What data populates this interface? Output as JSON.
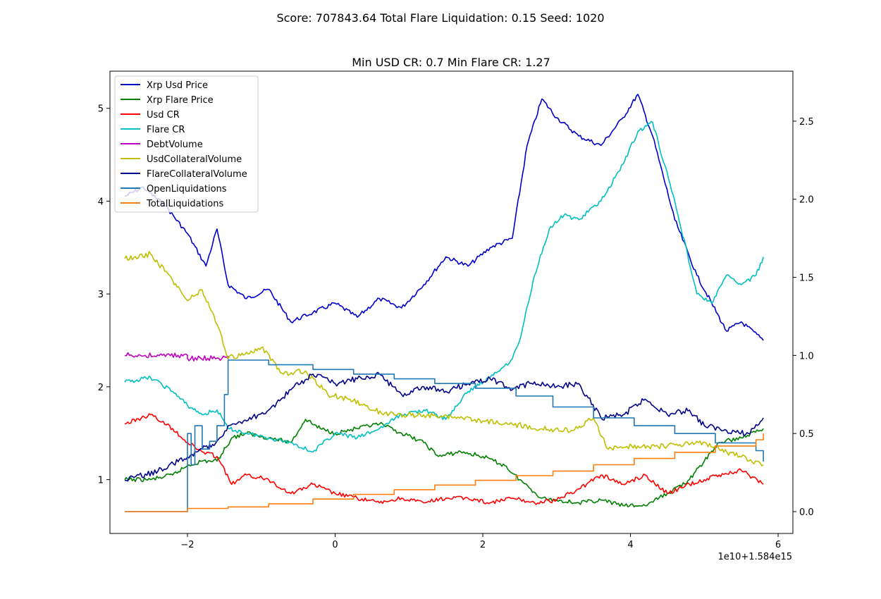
{
  "figure": {
    "suptitle": "Score: 707843.64 Total Flare Liquidation: 0.15 Seed: 1020",
    "title": "Min USD CR: 0.7 Min Flare CR: 1.27",
    "x_offset_label": "1e10+1.584e15"
  },
  "chart_data": {
    "type": "line",
    "title": "Min USD CR: 0.7 Min Flare CR: 1.27",
    "xlabel": "",
    "ylabel": "",
    "xlim": [
      -3.05,
      6.2
    ],
    "ylim": [
      0.42,
      5.4
    ],
    "y2lim": [
      -0.14,
      2.82
    ],
    "x_ticks": [
      -2,
      0,
      2,
      4,
      6
    ],
    "y_ticks": [
      1,
      2,
      3,
      4,
      5
    ],
    "y2_ticks": [
      0.0,
      0.5,
      1.0,
      1.5,
      2.0,
      2.5
    ],
    "grid": false,
    "legend_position": "upper-left",
    "series": [
      {
        "name": "Xrp Usd Price",
        "color": "#0000cc",
        "axis": "left",
        "x": [
          -2.85,
          -2.6,
          -2.3,
          -2.0,
          -1.75,
          -1.6,
          -1.45,
          -1.2,
          -0.9,
          -0.6,
          -0.3,
          0.0,
          0.3,
          0.6,
          0.9,
          1.2,
          1.5,
          1.8,
          2.1,
          2.4,
          2.6,
          2.8,
          3.0,
          3.3,
          3.6,
          3.9,
          4.1,
          4.3,
          4.6,
          4.9,
          5.1,
          5.3,
          5.5,
          5.8
        ],
        "values": [
          4.05,
          4.15,
          3.95,
          3.65,
          3.3,
          3.7,
          3.1,
          2.95,
          3.05,
          2.7,
          2.8,
          2.9,
          2.75,
          2.95,
          2.85,
          3.1,
          3.4,
          3.3,
          3.5,
          3.6,
          4.6,
          5.1,
          4.9,
          4.7,
          4.6,
          4.9,
          5.15,
          4.7,
          3.8,
          3.2,
          2.9,
          2.6,
          2.7,
          2.5
        ]
      },
      {
        "name": "Xrp Flare Price",
        "color": "#008000",
        "axis": "left",
        "x": [
          -2.85,
          -2.5,
          -2.2,
          -2.0,
          -1.8,
          -1.6,
          -1.4,
          -1.2,
          -0.9,
          -0.6,
          -0.4,
          -0.2,
          0.0,
          0.3,
          0.6,
          0.9,
          1.2,
          1.4,
          1.7,
          2.0,
          2.3,
          2.5,
          2.8,
          3.0,
          3.3,
          3.6,
          3.9,
          4.2,
          4.5,
          4.8,
          5.0,
          5.2,
          5.5,
          5.8
        ],
        "values": [
          1.0,
          1.0,
          1.05,
          1.15,
          1.2,
          1.2,
          1.45,
          1.5,
          1.45,
          1.4,
          1.65,
          1.55,
          1.5,
          1.55,
          1.6,
          1.5,
          1.4,
          1.25,
          1.3,
          1.25,
          1.15,
          1.0,
          0.8,
          0.78,
          0.75,
          0.78,
          0.72,
          0.72,
          0.85,
          1.0,
          1.2,
          1.4,
          1.45,
          1.55
        ]
      },
      {
        "name": "Usd CR",
        "color": "#ff0000",
        "axis": "left",
        "x": [
          -2.85,
          -2.5,
          -2.2,
          -2.0,
          -1.8,
          -1.6,
          -1.4,
          -1.2,
          -0.9,
          -0.6,
          -0.3,
          0.0,
          0.3,
          0.6,
          0.9,
          1.2,
          1.5,
          1.8,
          2.1,
          2.4,
          2.7,
          3.0,
          3.3,
          3.6,
          3.9,
          4.2,
          4.5,
          4.8,
          5.0,
          5.2,
          5.5,
          5.8
        ],
        "values": [
          1.6,
          1.7,
          1.55,
          1.4,
          1.3,
          1.25,
          0.95,
          1.05,
          1.0,
          0.85,
          0.95,
          0.85,
          0.8,
          0.75,
          0.8,
          0.75,
          0.8,
          0.8,
          0.75,
          0.8,
          0.75,
          0.78,
          0.9,
          1.05,
          0.95,
          1.05,
          0.85,
          0.95,
          1.0,
          1.05,
          1.1,
          0.95
        ]
      },
      {
        "name": "Flare CR",
        "color": "#00bfbf",
        "axis": "left",
        "x": [
          -2.85,
          -2.5,
          -2.2,
          -2.0,
          -1.8,
          -1.6,
          -1.45,
          -1.2,
          -0.9,
          -0.6,
          -0.3,
          0.0,
          0.3,
          0.6,
          0.9,
          1.2,
          1.5,
          1.8,
          2.1,
          2.4,
          2.5,
          2.7,
          2.9,
          3.1,
          3.3,
          3.6,
          3.9,
          4.1,
          4.3,
          4.6,
          4.9,
          5.1,
          5.3,
          5.5,
          5.7,
          5.8
        ],
        "values": [
          2.05,
          2.1,
          1.95,
          1.8,
          1.7,
          1.75,
          1.55,
          1.5,
          1.45,
          1.4,
          1.3,
          1.5,
          1.45,
          1.55,
          1.7,
          1.75,
          1.65,
          1.95,
          2.1,
          2.3,
          2.5,
          3.2,
          3.7,
          3.85,
          3.8,
          4.0,
          4.4,
          4.75,
          4.85,
          4.0,
          3.0,
          2.9,
          3.2,
          3.1,
          3.2,
          3.4
        ]
      },
      {
        "name": "DebtVolume",
        "color": "#bf00bf",
        "axis": "right",
        "x": [
          -2.85,
          -2.0,
          -2.0,
          -1.45,
          -1.45
        ],
        "values": [
          1.0,
          1.0,
          0.98,
          0.98,
          0.975
        ]
      },
      {
        "name": "UsdCollateralVolume",
        "color": "#bfbf00",
        "axis": "right",
        "x": [
          -2.85,
          -2.5,
          -2.2,
          -2.0,
          -1.8,
          -1.6,
          -1.45,
          -1.2,
          -1.0,
          -0.7,
          -0.4,
          -0.1,
          0.2,
          0.5,
          0.8,
          1.2,
          1.6,
          2.0,
          2.4,
          2.8,
          3.2,
          3.5,
          3.7,
          4.1,
          4.5,
          4.9,
          5.2,
          5.5,
          5.8
        ],
        "values": [
          1.62,
          1.65,
          1.48,
          1.35,
          1.42,
          1.2,
          0.98,
          1.02,
          1.05,
          0.88,
          0.9,
          0.75,
          0.72,
          0.65,
          0.62,
          0.62,
          0.6,
          0.58,
          0.56,
          0.53,
          0.52,
          0.6,
          0.4,
          0.42,
          0.42,
          0.45,
          0.4,
          0.35,
          0.3
        ]
      },
      {
        "name": "FlareCollateralVolume",
        "color": "#00008b",
        "axis": "right",
        "x": [
          -2.85,
          -2.4,
          -2.0,
          -1.8,
          -1.6,
          -1.45,
          -1.2,
          -0.9,
          -0.6,
          -0.3,
          0.0,
          0.3,
          0.6,
          0.9,
          1.2,
          1.5,
          1.8,
          2.1,
          2.4,
          2.7,
          3.0,
          3.3,
          3.6,
          3.9,
          4.2,
          4.5,
          4.8,
          5.0,
          5.3,
          5.6,
          5.8
        ],
        "values": [
          0.2,
          0.26,
          0.35,
          0.4,
          0.45,
          0.55,
          0.58,
          0.65,
          0.78,
          0.88,
          0.82,
          0.85,
          0.88,
          0.75,
          0.8,
          0.77,
          0.82,
          0.85,
          0.78,
          0.83,
          0.8,
          0.82,
          0.6,
          0.62,
          0.72,
          0.62,
          0.65,
          0.55,
          0.52,
          0.5,
          0.6
        ]
      },
      {
        "name": "OpenLiquidations",
        "color": "#1f77b4",
        "axis": "right",
        "step": true,
        "x": [
          -2.85,
          -2.0,
          -2.0,
          -1.95,
          -1.9,
          -1.8,
          -1.7,
          -1.6,
          -1.5,
          -1.45,
          -1.45,
          -0.9,
          -0.3,
          0.25,
          0.8,
          1.35,
          1.9,
          2.45,
          2.95,
          3.5,
          4.05,
          4.6,
          5.15,
          5.7,
          5.8
        ],
        "values": [
          0.0,
          0.0,
          0.5,
          0.3,
          0.55,
          0.4,
          0.45,
          0.55,
          0.75,
          0.95,
          0.97,
          0.94,
          0.91,
          0.88,
          0.85,
          0.82,
          0.79,
          0.74,
          0.67,
          0.6,
          0.55,
          0.5,
          0.44,
          0.39,
          0.32
        ]
      },
      {
        "name": "TotalLiquidations",
        "color": "#ff7f0e",
        "axis": "right",
        "step": true,
        "x": [
          -2.85,
          -2.0,
          -1.45,
          -0.9,
          -0.3,
          0.25,
          0.8,
          1.35,
          1.9,
          2.45,
          2.95,
          3.5,
          4.05,
          4.6,
          5.15,
          5.7,
          5.8
        ],
        "values": [
          0.0,
          0.02,
          0.03,
          0.05,
          0.08,
          0.11,
          0.14,
          0.17,
          0.2,
          0.23,
          0.26,
          0.3,
          0.34,
          0.38,
          0.42,
          0.46,
          0.5
        ]
      }
    ]
  }
}
